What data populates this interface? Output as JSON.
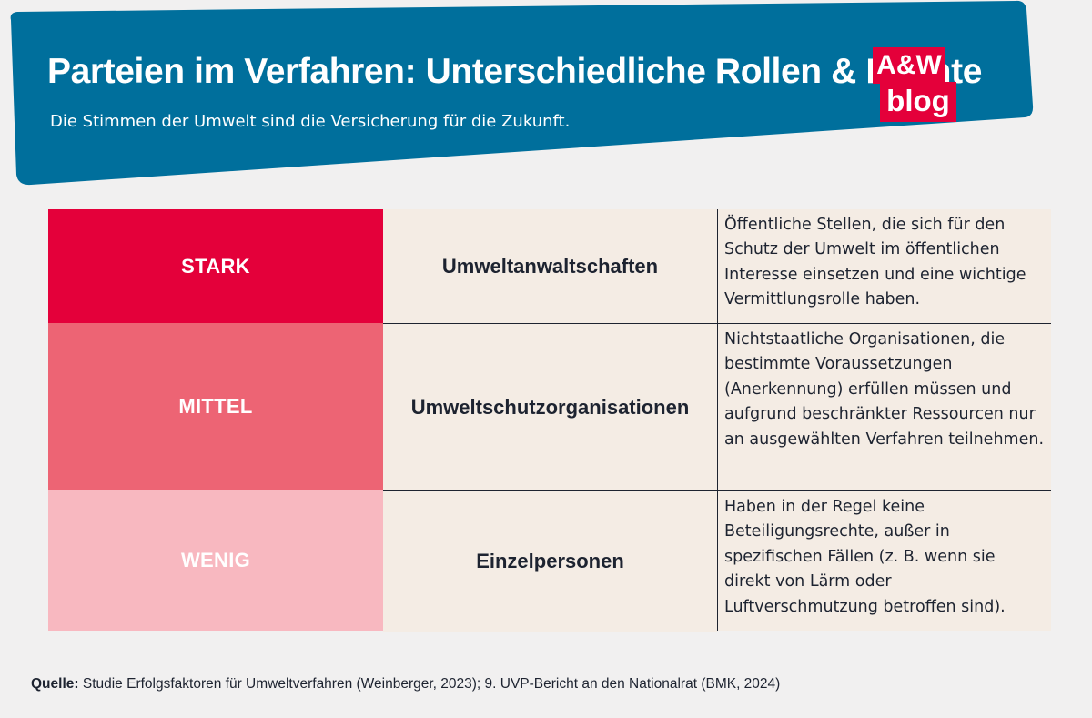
{
  "header": {
    "title": "Parteien im Verfahren: Unterschiedliche Rollen & Rechte",
    "subtitle": "Die Stimmen der Umwelt sind die Versicherung für die Zukunft.",
    "background_color": "#006f9c"
  },
  "logo": {
    "line1": "A&W",
    "line2": "blog",
    "color": "#e4003a"
  },
  "table": {
    "rows": [
      {
        "level": "STARK",
        "group": "Umweltanwaltschaften",
        "description": "Öffentliche Stellen, die sich für den Schutz der Umwelt im öffentlichen Interesse einsetzen und eine wichtige Vermittlungsrolle haben.",
        "color": "#e4003a"
      },
      {
        "level": "MITTEL",
        "group": "Umweltschutzorganisationen",
        "description": "Nichtstaatliche Organisationen, die bestimmte Voraussetzungen (Anerkennung) erfüllen müssen und aufgrund beschränkter Ressourcen nur an ausgewählten Verfahren teilnehmen.",
        "color": "#ed6474"
      },
      {
        "level": "WENIG",
        "group": "Einzelpersonen",
        "description": "Haben in der Regel keine Beteiligungsrechte, außer in spezifischen Fällen (z. B. wenn sie direkt von Lärm oder Luftverschmutzung betroffen sind).",
        "color": "#f8b8c0"
      }
    ],
    "cell_background": "#f4ece4"
  },
  "source": {
    "label": "Quelle:",
    "text": " Studie Erfolgsfaktoren für Umweltverfahren (Weinberger, 2023); 9. UVP-Bericht an den Nationalrat (BMK, 2024)"
  }
}
